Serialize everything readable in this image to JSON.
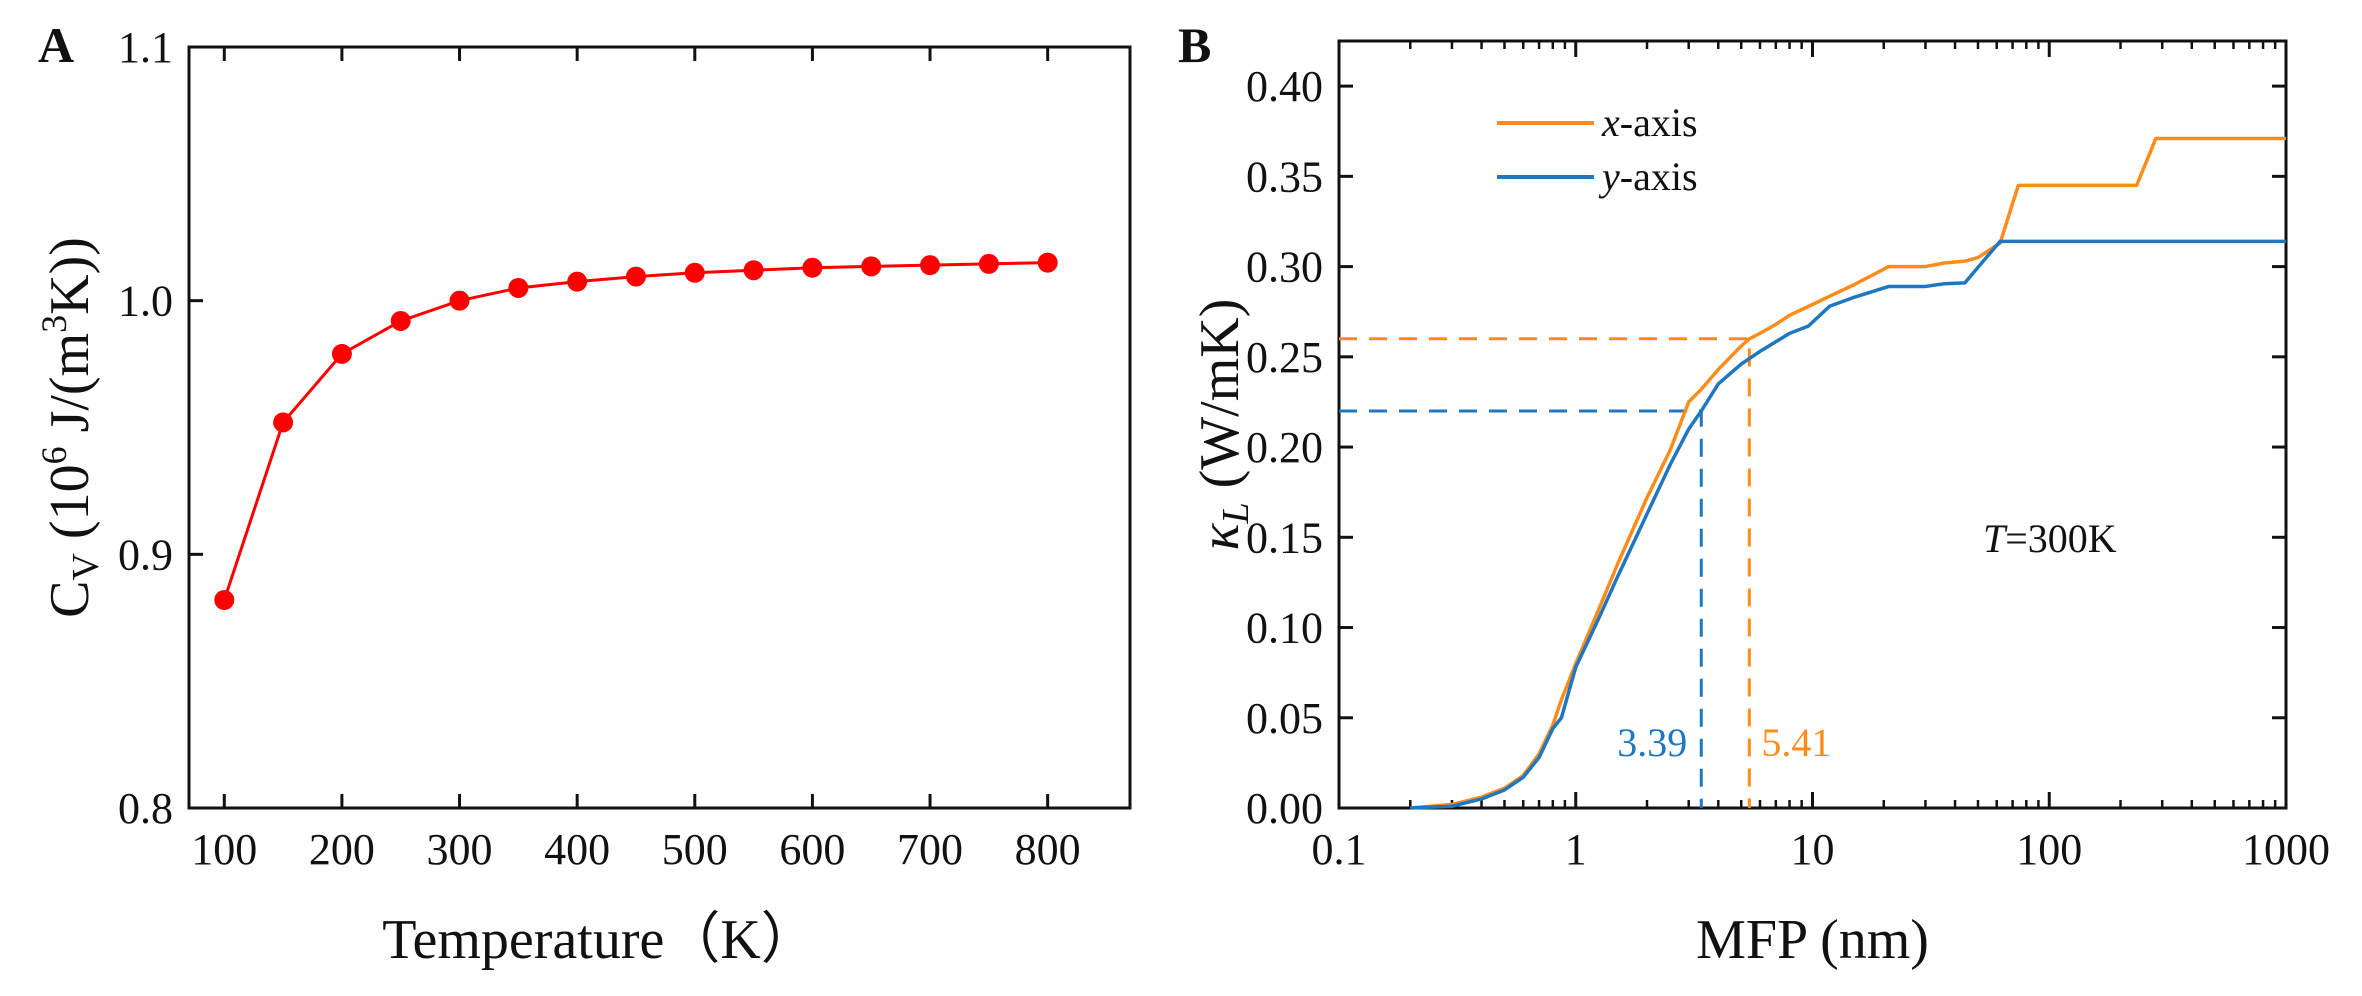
{
  "chart_data": [
    {
      "panel_label": "A",
      "type": "line",
      "markers": true,
      "color": "#ff0000",
      "xlabel": "Temperature（K）",
      "ylabel": "C_V (10^6 J/(m^3K))",
      "ylabel_parts": {
        "main": "C",
        "sub": "V",
        "open": " (10",
        "sup1": "6",
        "mid": " J/(m",
        "sup2": "3",
        "close": "K))"
      },
      "xlim": [
        70,
        870
      ],
      "ylim": [
        0.8,
        1.1
      ],
      "xticks": [
        100,
        200,
        300,
        400,
        500,
        600,
        700,
        800
      ],
      "yticks": [
        "0.8",
        "0.9",
        "1.0",
        "1.1"
      ],
      "x": [
        100,
        150,
        200,
        250,
        300,
        350,
        400,
        450,
        500,
        550,
        600,
        650,
        700,
        750,
        800
      ],
      "y": [
        0.882,
        0.952,
        0.979,
        0.992,
        1.0,
        1.005,
        1.0075,
        1.0095,
        1.011,
        1.012,
        1.013,
        1.0135,
        1.014,
        1.0145,
        1.015
      ]
    },
    {
      "panel_label": "B",
      "type": "line",
      "xscale": "log",
      "xlabel": "MFP (nm)",
      "ylabel": "κL (W/mK)",
      "ylabel_parts": {
        "main": "κ",
        "sub": "L",
        "rest": " (W/mK)"
      },
      "xlim": [
        0.1,
        1000
      ],
      "ylim": [
        0,
        0.425
      ],
      "xticks": [
        "0.1",
        "1",
        "10",
        "100",
        "1000"
      ],
      "yticks": [
        "0.00",
        "0.05",
        "0.10",
        "0.15",
        "0.20",
        "0.25",
        "0.30",
        "0.35",
        "0.40"
      ],
      "annotation": {
        "prefix": "T",
        "rest": "=300K"
      },
      "series": [
        {
          "name": "x-axis",
          "name_italic": "x",
          "name_rest": "-axis",
          "color": "#ff8c1a",
          "x": [
            0.2,
            0.3,
            0.4,
            0.5,
            0.6,
            0.7,
            0.8,
            0.87,
            1.0,
            1.25,
            1.5,
            2,
            2.5,
            3,
            3.39,
            4,
            5,
            5.41,
            6,
            7,
            8,
            10,
            12,
            15,
            21,
            30,
            36,
            44,
            50,
            62,
            74,
            234,
            282,
            1000
          ],
          "y": [
            0,
            0.002,
            0.006,
            0.011,
            0.018,
            0.03,
            0.046,
            0.06,
            0.08,
            0.11,
            0.135,
            0.172,
            0.198,
            0.225,
            0.232,
            0.243,
            0.256,
            0.26,
            0.263,
            0.268,
            0.273,
            0.279,
            0.284,
            0.29,
            0.3,
            0.3,
            0.302,
            0.303,
            0.305,
            0.313,
            0.345,
            0.345,
            0.371,
            0.371
          ]
        },
        {
          "name": "y-axis",
          "name_italic": "y",
          "name_rest": "-axis",
          "color": "#1f77c0",
          "x": [
            0.2,
            0.3,
            0.4,
            0.5,
            0.6,
            0.7,
            0.8,
            0.87,
            1.0,
            1.25,
            1.5,
            2,
            2.5,
            3,
            3.39,
            4,
            5,
            6,
            8,
            9.6,
            11.8,
            15,
            21,
            30,
            36,
            44,
            62,
            1000
          ],
          "y": [
            0,
            0.001,
            0.005,
            0.01,
            0.017,
            0.028,
            0.044,
            0.05,
            0.078,
            0.105,
            0.128,
            0.163,
            0.19,
            0.21,
            0.22,
            0.235,
            0.246,
            0.253,
            0.263,
            0.267,
            0.278,
            0.283,
            0.289,
            0.289,
            0.2905,
            0.291,
            0.314,
            0.314
          ]
        }
      ],
      "guides": [
        {
          "x": 3.39,
          "y": 0.22,
          "label": "3.39",
          "color": "#1f77c0"
        },
        {
          "x": 5.41,
          "y": 0.26,
          "label": "5.41",
          "color": "#ff8c1a"
        }
      ]
    }
  ]
}
